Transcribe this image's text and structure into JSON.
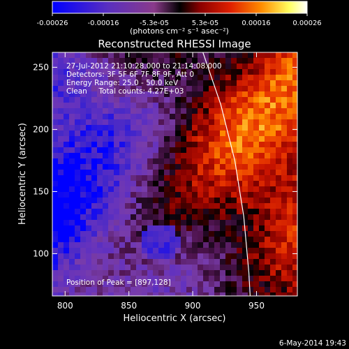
{
  "chart_data": {
    "type": "heatmap",
    "title": "Reconstructed RHESSI Image",
    "colorbar": {
      "ticks": [
        "-0.00026",
        "-0.00016",
        "-5.3e-05",
        "5.3e-05",
        "0.00016",
        "0.00026"
      ],
      "label": "(photons cm⁻² s⁻¹ asec⁻²)",
      "range": [
        -0.00026,
        0.00026
      ],
      "colormap": [
        "#0000ff",
        "#5a2fbf",
        "#8a3a8a",
        "#000000",
        "#8b0000",
        "#e02000",
        "#ff8c00",
        "#ffff60",
        "#ffffff"
      ]
    },
    "x_axis": {
      "label": "Heliocentric X (arcsec)",
      "ticks": [
        800,
        850,
        900,
        950
      ],
      "range": [
        790,
        982
      ]
    },
    "y_axis": {
      "label": "Heliocentric Y (arcsec)",
      "ticks": [
        100,
        150,
        200,
        250
      ],
      "range": [
        66,
        262
      ]
    },
    "annotations": [
      "27-Jul-2012 21:10:28.000 to 21:14:08.000",
      "Detectors: 3F 5F 6F 7F 8F 9F, Att 0",
      "Energy Range: 25.0 - 50.0 keV",
      "Clean     Total counts: 4.27E+03"
    ],
    "peak_label": "Position of Peak = [897,128]",
    "limb": {
      "points": [
        [
          908,
          262
        ],
        [
          922,
          220
        ],
        [
          933,
          175
        ],
        [
          940,
          130
        ],
        [
          944,
          85
        ],
        [
          945,
          66
        ]
      ]
    }
  },
  "footer": {
    "timestamp": "6-May-2014 19:43"
  }
}
